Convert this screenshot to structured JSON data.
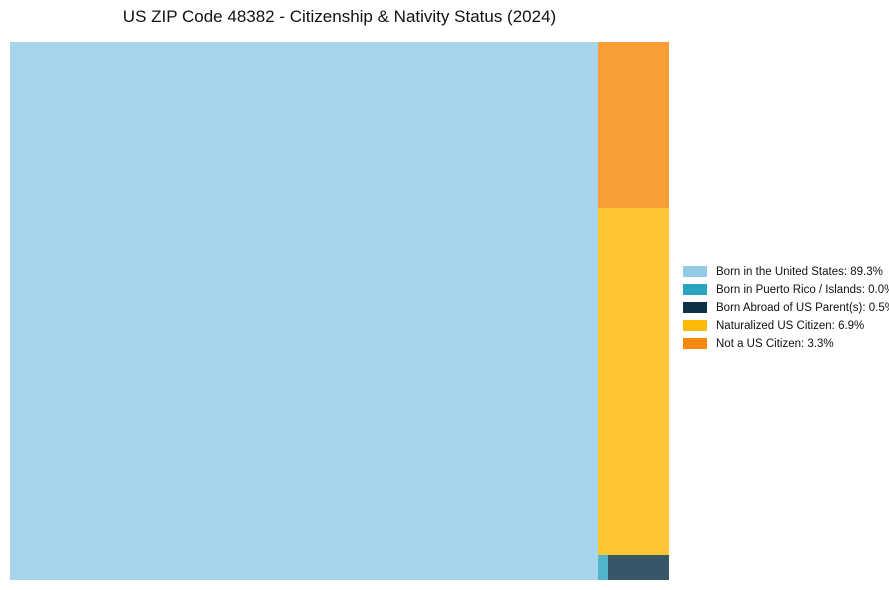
{
  "title": "US ZIP Code 48382 - Citizenship & Nativity Status (2024)",
  "chart_data": {
    "type": "treemap",
    "title": "US ZIP Code 48382 - Citizenship & Nativity Status (2024)",
    "unit": "%",
    "categories": [
      "Born in the United States",
      "Born in Puerto Rico / Islands",
      "Born Abroad of US Parent(s)",
      "Naturalized US Citizen",
      "Not a US Citizen"
    ],
    "values": [
      89.3,
      0.0,
      0.5,
      6.9,
      3.3
    ],
    "colors": [
      "#92CBE5",
      "#29A3BF",
      "#0D3148",
      "#FCBA05",
      "#F8890B"
    ],
    "legend_position": "right",
    "legend": [
      {
        "label": "Born in the United States: 89.3%",
        "color": "#92CBE5"
      },
      {
        "label": "Born in Puerto Rico / Islands: 0.0%",
        "color": "#29A3BF"
      },
      {
        "label": "Born Abroad of US Parent(s): 0.5%",
        "color": "#0D3148"
      },
      {
        "label": "Naturalized US Citizen: 6.9%",
        "color": "#FCBA05"
      },
      {
        "label": "Not a US Citizen: 3.3%",
        "color": "#F8890B"
      }
    ],
    "layout": {
      "main_tile": "Born in the United States",
      "right_column_top_to_bottom": [
        "Not a US Citizen",
        "Naturalized US Citizen",
        "bottom-row"
      ],
      "bottom_row_left_to_right": [
        "Born in Puerto Rico / Islands",
        "Born Abroad of US Parent(s)"
      ]
    }
  }
}
